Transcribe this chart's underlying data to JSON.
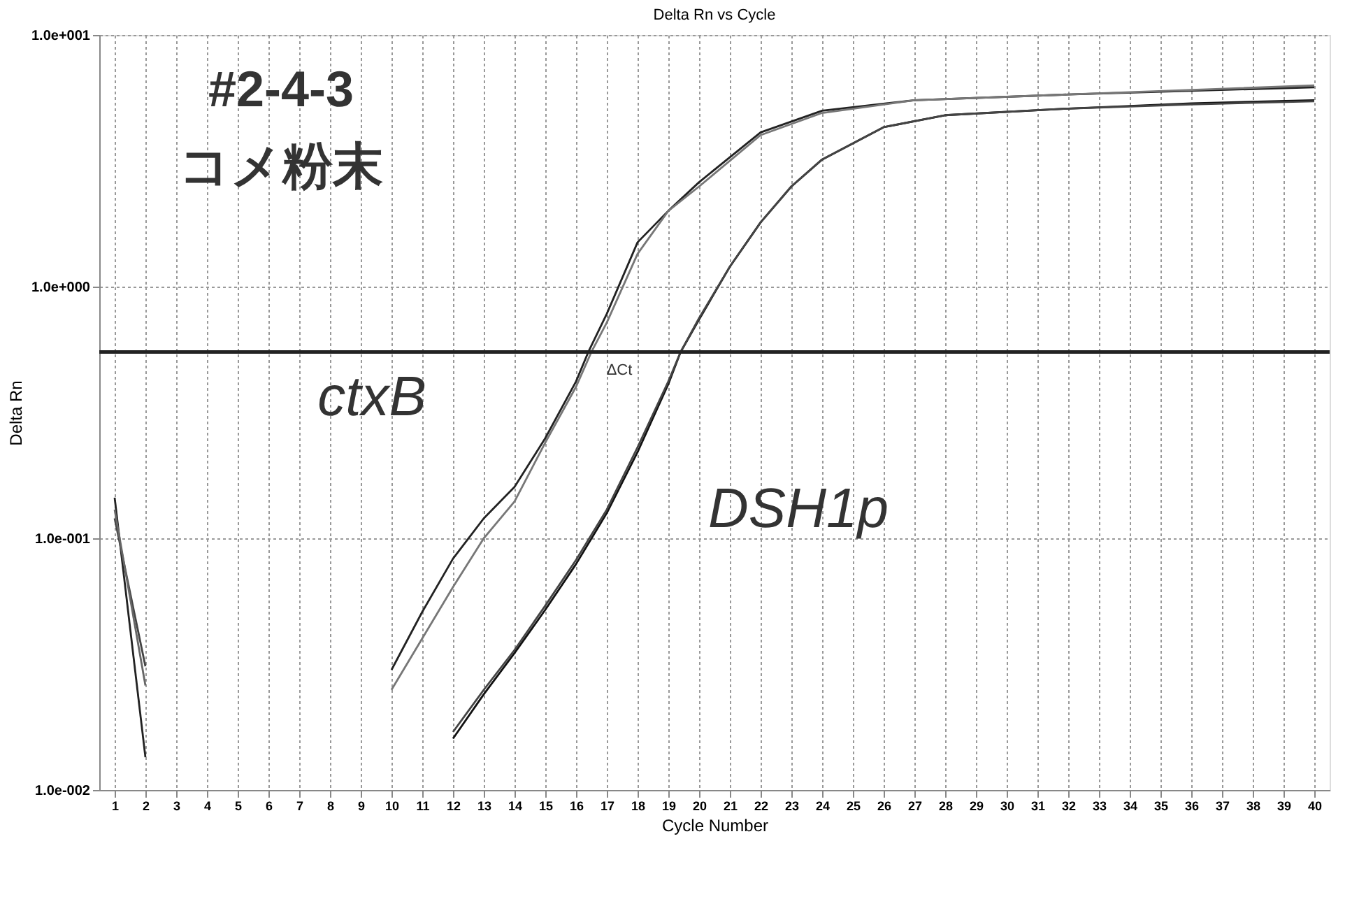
{
  "chart_data": {
    "type": "line",
    "title": "Delta Rn vs Cycle",
    "xlabel": "Cycle Number",
    "ylabel": "Delta Rn",
    "log": "y",
    "grid": true,
    "marker": "none",
    "line_style": "solid",
    "xlim": [
      0.5,
      40.5
    ],
    "xticks": [
      1,
      2,
      3,
      4,
      5,
      6,
      7,
      8,
      9,
      10,
      11,
      12,
      13,
      14,
      15,
      16,
      17,
      18,
      19,
      20,
      21,
      22,
      23,
      24,
      25,
      26,
      27,
      28,
      29,
      30,
      31,
      32,
      33,
      34,
      35,
      36,
      37,
      38,
      39,
      40
    ],
    "ylim": [
      0.01,
      10
    ],
    "yticks": [
      {
        "value": 0.01,
        "label": "1.0e-002"
      },
      {
        "value": 0.1,
        "label": "1.0e-001"
      },
      {
        "value": 1,
        "label": "1.0e+000"
      },
      {
        "value": 10,
        "label": "1.0e+001"
      }
    ],
    "series": [
      {
        "color": "#222222",
        "x": [
          10,
          11,
          12,
          13,
          14,
          15,
          16,
          16.4,
          17,
          18,
          19,
          20,
          22,
          24,
          27,
          32,
          40
        ],
        "values": [
          0.03,
          0.051,
          0.083,
          0.12,
          0.16,
          0.25,
          0.42,
          0.55,
          0.78,
          1.5,
          2.0,
          2.6,
          4.1,
          5.0,
          5.5,
          5.8,
          6.2
        ]
      },
      {
        "color": "#777777",
        "x": [
          10,
          11,
          12,
          13,
          14,
          15,
          16,
          16.5,
          17,
          18,
          19,
          20,
          22,
          24,
          27,
          32,
          40
        ],
        "values": [
          0.025,
          0.04,
          0.064,
          0.1,
          0.14,
          0.24,
          0.4,
          0.55,
          0.72,
          1.35,
          2.0,
          2.5,
          4.0,
          4.9,
          5.5,
          5.8,
          6.3
        ]
      },
      {
        "color": "#111111",
        "x": [
          12,
          13,
          14,
          15,
          16,
          17,
          18,
          19,
          19.4,
          20,
          21,
          22,
          23,
          24,
          26,
          28,
          32,
          36,
          40
        ],
        "values": [
          0.016,
          0.024,
          0.035,
          0.052,
          0.079,
          0.126,
          0.22,
          0.41,
          0.55,
          0.74,
          1.2,
          1.8,
          2.5,
          3.2,
          4.3,
          4.8,
          5.1,
          5.35,
          5.5
        ]
      },
      {
        "color": "#444444",
        "x": [
          12,
          13,
          14,
          15,
          16,
          17,
          18,
          19,
          19.4,
          20,
          21,
          22,
          23,
          24,
          26,
          28,
          32,
          36,
          40
        ],
        "values": [
          0.017,
          0.025,
          0.036,
          0.054,
          0.082,
          0.13,
          0.23,
          0.42,
          0.55,
          0.75,
          1.2,
          1.8,
          2.5,
          3.2,
          4.3,
          4.8,
          5.1,
          5.3,
          5.45
        ]
      },
      {
        "color": "#222222",
        "x": [
          1,
          2
        ],
        "values": [
          0.145,
          0.0135
        ]
      },
      {
        "color": "#444444",
        "x": [
          1,
          2
        ],
        "values": [
          0.12,
          0.031
        ]
      },
      {
        "color": "#666666",
        "x": [
          1,
          2
        ],
        "values": [
          0.13,
          0.026
        ]
      }
    ],
    "ref_lines": [
      {
        "axis": "y",
        "value": 0.55,
        "color": "#222222",
        "line_style": "solid"
      }
    ],
    "annotations": [
      "#2-4-3",
      "コメ粉末",
      "ctxB",
      "DSH1p",
      "ΔCt"
    ]
  }
}
